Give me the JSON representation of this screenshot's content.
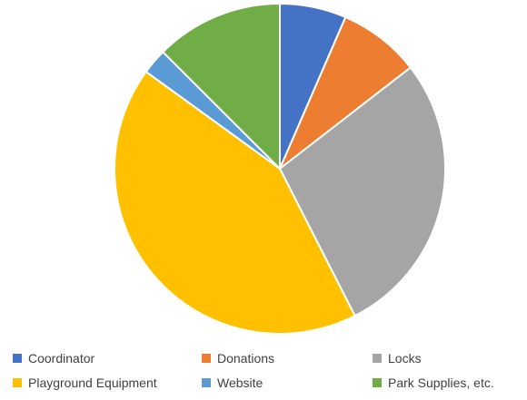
{
  "chart_data": {
    "type": "pie",
    "title": "",
    "start_angle_deg": 0,
    "direction": "clockwise",
    "categories": [
      "Coordinator",
      "Donations",
      "Locks",
      "Playground Equipment",
      "Website",
      "Park Supplies, etc."
    ],
    "values": [
      6.5,
      8.0,
      28.0,
      42.5,
      2.5,
      12.5
    ],
    "colors": [
      "#4472C4",
      "#ED7D31",
      "#A5A5A5",
      "#FFC000",
      "#5B9BD5",
      "#70AD47"
    ],
    "legend_position": "bottom"
  },
  "legend": {
    "items": [
      {
        "label": "Coordinator",
        "color": "#4472C4"
      },
      {
        "label": "Donations",
        "color": "#ED7D31"
      },
      {
        "label": "Locks",
        "color": "#A5A5A5"
      },
      {
        "label": "Playground Equipment",
        "color": "#FFC000"
      },
      {
        "label": "Website",
        "color": "#5B9BD5"
      },
      {
        "label": "Park Supplies, etc.",
        "color": "#70AD47"
      }
    ]
  }
}
